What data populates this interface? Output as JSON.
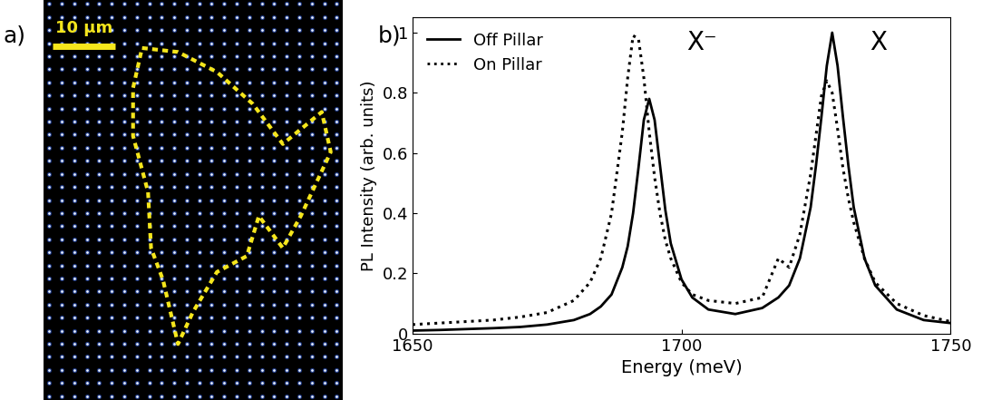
{
  "chart_data": [
    {
      "type": "image",
      "label": "a)",
      "scale_bar": "10 μm"
    },
    {
      "type": "line",
      "label": "b)",
      "xlabel": "Energy (meV)",
      "ylabel": "PL Intensity (arb. units)",
      "xlim": [
        1650,
        1750
      ],
      "ylim": [
        0,
        1.05
      ],
      "xticks": [
        1650,
        1700,
        1750
      ],
      "yticks": [
        0,
        0.2,
        0.4,
        0.6,
        0.8,
        1
      ],
      "legend": "upper left",
      "annotations": [
        "X⁻",
        "X"
      ],
      "x": [
        1650,
        1655,
        1660,
        1665,
        1670,
        1675,
        1680,
        1683,
        1685,
        1687,
        1689,
        1690,
        1691,
        1692,
        1693,
        1694,
        1695,
        1696,
        1697,
        1698,
        1700,
        1702,
        1705,
        1710,
        1715,
        1718,
        1720,
        1722,
        1724,
        1725,
        1726,
        1727,
        1728,
        1729,
        1730,
        1731,
        1732,
        1734,
        1736,
        1740,
        1745,
        1750
      ],
      "series": [
        {
          "name": "Off Pillar",
          "color": "#000000",
          "line_style": "solid",
          "values": [
            0.01,
            0.012,
            0.015,
            0.018,
            0.022,
            0.03,
            0.045,
            0.065,
            0.09,
            0.13,
            0.22,
            0.29,
            0.4,
            0.55,
            0.71,
            0.78,
            0.71,
            0.56,
            0.41,
            0.3,
            0.18,
            0.12,
            0.08,
            0.065,
            0.085,
            0.12,
            0.16,
            0.25,
            0.42,
            0.56,
            0.72,
            0.89,
            1.0,
            0.89,
            0.72,
            0.56,
            0.42,
            0.25,
            0.16,
            0.08,
            0.045,
            0.035
          ]
        },
        {
          "name": "On Pillar",
          "color": "#000000",
          "line_style": "dotted",
          "values": [
            0.03,
            0.035,
            0.04,
            0.045,
            0.055,
            0.07,
            0.11,
            0.17,
            0.25,
            0.4,
            0.67,
            0.85,
            0.99,
            0.98,
            0.85,
            0.67,
            0.52,
            0.4,
            0.31,
            0.25,
            0.17,
            0.13,
            0.11,
            0.1,
            0.12,
            0.25,
            0.22,
            0.33,
            0.53,
            0.66,
            0.79,
            0.84,
            0.8,
            0.68,
            0.55,
            0.45,
            0.37,
            0.25,
            0.17,
            0.1,
            0.06,
            0.04
          ]
        }
      ]
    }
  ]
}
